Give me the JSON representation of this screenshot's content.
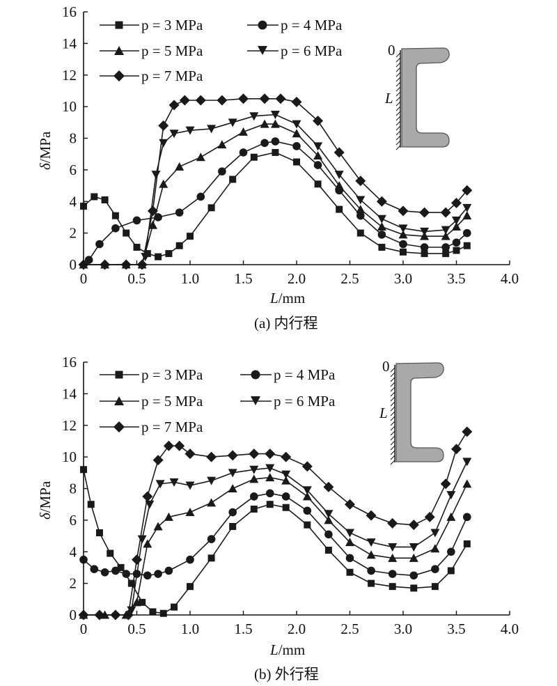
{
  "chart_data": [
    {
      "type": "line",
      "caption": "(a) 内行程",
      "xlabel": "L/mm",
      "ylabel": "δ/MPa",
      "xlim": [
        0,
        4.0
      ],
      "ylim": [
        0,
        16
      ],
      "xticks": [
        "0",
        "0.5",
        "1.0",
        "1.5",
        "2.0",
        "2.5",
        "3.0",
        "3.5",
        "4.0"
      ],
      "yticks": [
        "0",
        "2",
        "4",
        "6",
        "8",
        "10",
        "12",
        "14",
        "16"
      ],
      "legend_position": "top-left",
      "inset": {
        "top_label": "0",
        "side_label": "L"
      },
      "series": [
        {
          "name": "p = 3 MPa",
          "marker": "square",
          "x": [
            0,
            0.1,
            0.2,
            0.3,
            0.4,
            0.5,
            0.6,
            0.7,
            0.8,
            0.9,
            1.0,
            1.2,
            1.4,
            1.6,
            1.8,
            2.0,
            2.2,
            2.4,
            2.6,
            2.8,
            3.0,
            3.2,
            3.4,
            3.5,
            3.6
          ],
          "y": [
            3.7,
            4.3,
            4.1,
            3.1,
            2.0,
            1.1,
            0.7,
            0.5,
            0.7,
            1.2,
            1.8,
            3.6,
            5.4,
            6.8,
            7.1,
            6.5,
            5.1,
            3.5,
            2.0,
            1.1,
            0.8,
            0.7,
            0.7,
            0.9,
            1.2
          ]
        },
        {
          "name": "p = 4 MPa",
          "marker": "circle",
          "x": [
            0.05,
            0.15,
            0.3,
            0.5,
            0.7,
            0.9,
            1.1,
            1.3,
            1.5,
            1.7,
            1.8,
            2.0,
            2.2,
            2.4,
            2.6,
            2.8,
            3.0,
            3.2,
            3.4,
            3.5,
            3.6
          ],
          "y": [
            0.3,
            1.3,
            2.3,
            2.8,
            3.0,
            3.3,
            4.3,
            5.9,
            7.1,
            7.7,
            7.8,
            7.5,
            6.3,
            4.7,
            3.1,
            1.9,
            1.3,
            1.1,
            1.1,
            1.4,
            2.0
          ]
        },
        {
          "name": "p = 5 MPa",
          "marker": "triangle-up",
          "x": [
            0,
            0.2,
            0.4,
            0.55,
            0.65,
            0.75,
            0.9,
            1.1,
            1.3,
            1.5,
            1.7,
            1.8,
            2.0,
            2.2,
            2.4,
            2.6,
            2.8,
            3.0,
            3.2,
            3.4,
            3.5,
            3.6
          ],
          "y": [
            0,
            0,
            0,
            0,
            2.5,
            5.1,
            6.2,
            6.8,
            7.6,
            8.4,
            8.9,
            8.9,
            8.3,
            6.9,
            5.0,
            3.5,
            2.4,
            1.9,
            1.8,
            1.8,
            2.4,
            3.1
          ]
        },
        {
          "name": "p = 6 MPa",
          "marker": "triangle-down",
          "x": [
            0.58,
            0.68,
            0.75,
            0.85,
            1.0,
            1.2,
            1.4,
            1.6,
            1.8,
            2.0,
            2.2,
            2.4,
            2.6,
            2.8,
            3.0,
            3.2,
            3.4,
            3.5,
            3.6
          ],
          "y": [
            0.5,
            5.7,
            7.7,
            8.3,
            8.5,
            8.6,
            9.0,
            9.4,
            9.5,
            8.9,
            7.5,
            5.7,
            4.1,
            2.9,
            2.3,
            2.1,
            2.2,
            2.8,
            3.6
          ]
        },
        {
          "name": "p = 7 MPa",
          "marker": "diamond",
          "x": [
            0,
            0.2,
            0.4,
            0.55,
            0.65,
            0.75,
            0.85,
            0.95,
            1.1,
            1.3,
            1.5,
            1.7,
            1.85,
            2.0,
            2.2,
            2.4,
            2.6,
            2.8,
            3.0,
            3.2,
            3.4,
            3.5,
            3.6
          ],
          "y": [
            0,
            0,
            0,
            0,
            3.4,
            8.8,
            10.1,
            10.4,
            10.4,
            10.4,
            10.5,
            10.5,
            10.5,
            10.3,
            9.1,
            7.1,
            5.3,
            4.0,
            3.4,
            3.3,
            3.3,
            3.9,
            4.7
          ]
        }
      ]
    },
    {
      "type": "line",
      "caption": "(b) 外行程",
      "xlabel": "L/mm",
      "ylabel": "δ/MPa",
      "xlim": [
        0,
        4.0
      ],
      "ylim": [
        0,
        16
      ],
      "xticks": [
        "0",
        "0.5",
        "1.0",
        "1.5",
        "2.0",
        "2.5",
        "3.0",
        "3.5",
        "4.0"
      ],
      "yticks": [
        "0",
        "2",
        "4",
        "6",
        "8",
        "10",
        "12",
        "14",
        "16"
      ],
      "legend_position": "top-left",
      "inset": {
        "top_label": "0",
        "side_label": "L"
      },
      "series": [
        {
          "name": "p = 3 MPa",
          "marker": "square",
          "x": [
            0,
            0.07,
            0.15,
            0.25,
            0.35,
            0.45,
            0.55,
            0.65,
            0.75,
            0.85,
            1.0,
            1.2,
            1.4,
            1.6,
            1.75,
            1.9,
            2.1,
            2.3,
            2.5,
            2.7,
            2.9,
            3.1,
            3.3,
            3.45,
            3.6
          ],
          "y": [
            9.2,
            7.0,
            5.2,
            3.9,
            3.0,
            2.0,
            0.8,
            0.2,
            0.1,
            0.5,
            1.8,
            3.6,
            5.6,
            6.7,
            7.0,
            6.8,
            5.7,
            4.1,
            2.7,
            2.0,
            1.8,
            1.7,
            1.8,
            2.8,
            4.5
          ]
        },
        {
          "name": "p = 4 MPa",
          "marker": "circle",
          "x": [
            0,
            0.1,
            0.2,
            0.3,
            0.4,
            0.5,
            0.6,
            0.7,
            0.8,
            1.0,
            1.2,
            1.4,
            1.6,
            1.75,
            1.9,
            2.1,
            2.3,
            2.5,
            2.7,
            2.9,
            3.1,
            3.3,
            3.45,
            3.6
          ],
          "y": [
            3.5,
            2.9,
            2.7,
            2.8,
            2.6,
            2.6,
            2.5,
            2.6,
            2.8,
            3.5,
            4.8,
            6.5,
            7.5,
            7.7,
            7.5,
            6.6,
            5.1,
            3.6,
            2.8,
            2.6,
            2.5,
            2.9,
            4.0,
            6.2
          ]
        },
        {
          "name": "p = 5 MPa",
          "marker": "triangle-up",
          "x": [
            0,
            0.2,
            0.4,
            0.5,
            0.6,
            0.7,
            0.8,
            1.0,
            1.2,
            1.4,
            1.6,
            1.75,
            1.9,
            2.1,
            2.3,
            2.5,
            2.7,
            2.9,
            3.1,
            3.3,
            3.45,
            3.6
          ],
          "y": [
            0,
            0,
            0,
            0.8,
            4.5,
            5.6,
            6.2,
            6.5,
            7.1,
            8.0,
            8.6,
            8.7,
            8.5,
            7.5,
            6.0,
            4.6,
            3.8,
            3.6,
            3.6,
            4.2,
            6.2,
            8.3
          ]
        },
        {
          "name": "p = 6 MPa",
          "marker": "triangle-down",
          "x": [
            0.45,
            0.55,
            0.62,
            0.72,
            0.85,
            1.0,
            1.2,
            1.4,
            1.6,
            1.75,
            1.9,
            2.1,
            2.3,
            2.5,
            2.7,
            2.9,
            3.1,
            3.3,
            3.45,
            3.6
          ],
          "y": [
            0.3,
            4.8,
            7.0,
            8.3,
            8.4,
            8.2,
            8.5,
            9.0,
            9.2,
            9.3,
            8.9,
            7.9,
            6.4,
            5.2,
            4.6,
            4.3,
            4.3,
            5.2,
            7.6,
            9.7
          ]
        },
        {
          "name": "p = 7 MPa",
          "marker": "diamond",
          "x": [
            0,
            0.15,
            0.3,
            0.42,
            0.5,
            0.6,
            0.7,
            0.8,
            0.9,
            1.0,
            1.2,
            1.4,
            1.6,
            1.75,
            1.9,
            2.1,
            2.3,
            2.5,
            2.7,
            2.9,
            3.1,
            3.25,
            3.4,
            3.5,
            3.6
          ],
          "y": [
            0,
            0,
            0,
            0,
            3.5,
            7.5,
            9.8,
            10.7,
            10.7,
            10.2,
            10.0,
            10.1,
            10.2,
            10.2,
            10.0,
            9.4,
            8.1,
            7.0,
            6.3,
            5.8,
            5.7,
            6.2,
            8.3,
            10.5,
            11.6
          ]
        }
      ]
    }
  ]
}
